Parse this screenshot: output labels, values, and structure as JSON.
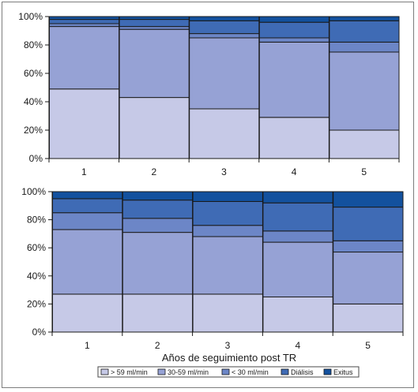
{
  "colors": {
    "gt59": "#c6c9e7",
    "c30_59": "#96a2d5",
    "lt30": "#6c86c7",
    "dialisis": "#3f6bb5",
    "exitus": "#13519e",
    "outline": "#1a1a1a"
  },
  "legend": {
    "items": [
      {
        "key": "gt59",
        "label": "> 59 ml/min"
      },
      {
        "key": "c30_59",
        "label": "30-59 ml/min"
      },
      {
        "key": "lt30",
        "label": "< 30 ml/min"
      },
      {
        "key": "dialisis",
        "label": "Diálisis"
      },
      {
        "key": "exitus",
        "label": "Exitus"
      }
    ]
  },
  "chart_data": [
    {
      "type": "bar",
      "stacked": true,
      "percent": true,
      "categories": [
        "1",
        "2",
        "3",
        "4",
        "5"
      ],
      "ylim": [
        0,
        100
      ],
      "yticks": [
        "0%",
        "20%",
        "40%",
        "60%",
        "80%",
        "100%"
      ],
      "xlabel": "",
      "series": [
        {
          "key": "gt59",
          "name": "> 59 ml/min",
          "values": [
            49,
            43,
            35,
            29,
            20
          ]
        },
        {
          "key": "c30_59",
          "name": "30-59 ml/min",
          "values": [
            44,
            48,
            50,
            53,
            55
          ]
        },
        {
          "key": "lt30",
          "name": "< 30 ml/min",
          "values": [
            2,
            2,
            3,
            3,
            7
          ]
        },
        {
          "key": "dialisis",
          "name": "Diálisis",
          "values": [
            3,
            5,
            9,
            11,
            15
          ]
        },
        {
          "key": "exitus",
          "name": "Exitus",
          "values": [
            2,
            2,
            3,
            4,
            3
          ]
        }
      ]
    },
    {
      "type": "bar",
      "stacked": true,
      "percent": true,
      "categories": [
        "1",
        "2",
        "3",
        "4",
        "5"
      ],
      "ylim": [
        0,
        100
      ],
      "yticks": [
        "0%",
        "20%",
        "40%",
        "60%",
        "80%",
        "100%"
      ],
      "xlabel": "Años de seguimiento post TR",
      "series": [
        {
          "key": "gt59",
          "name": "> 59 ml/min",
          "values": [
            27,
            27,
            27,
            25,
            20
          ]
        },
        {
          "key": "c30_59",
          "name": "30-59 ml/min",
          "values": [
            46,
            44,
            41,
            39,
            37
          ]
        },
        {
          "key": "lt30",
          "name": "< 30 ml/min",
          "values": [
            12,
            10,
            8,
            8,
            8
          ]
        },
        {
          "key": "dialisis",
          "name": "Diálisis",
          "values": [
            10,
            13,
            17,
            20,
            24
          ]
        },
        {
          "key": "exitus",
          "name": "Exitus",
          "values": [
            5,
            6,
            7,
            8,
            11
          ]
        }
      ]
    }
  ]
}
